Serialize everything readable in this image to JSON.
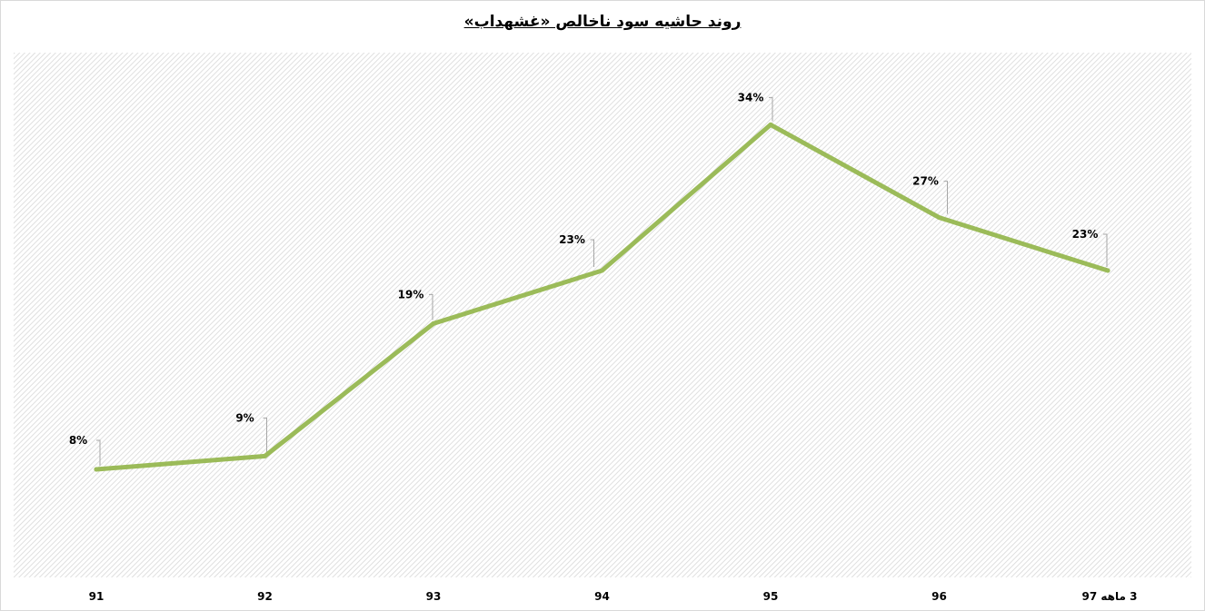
{
  "chart_data": {
    "type": "line",
    "title": "روند حاشیه سود ناخالص «غشهداب»",
    "categories": [
      "91",
      "92",
      "93",
      "94",
      "95",
      "96",
      "3 ماهه 97"
    ],
    "series": [
      {
        "values": [
          8,
          9,
          19,
          23,
          34,
          27,
          23
        ],
        "labels": [
          "8%",
          "9%",
          "19%",
          "23%",
          "34%",
          "27%",
          "23%"
        ],
        "color": "#9bbb59"
      }
    ],
    "ylim": [
      0,
      34
    ],
    "grid": false,
    "legend": "none",
    "plot_background": "hatched-gray"
  }
}
